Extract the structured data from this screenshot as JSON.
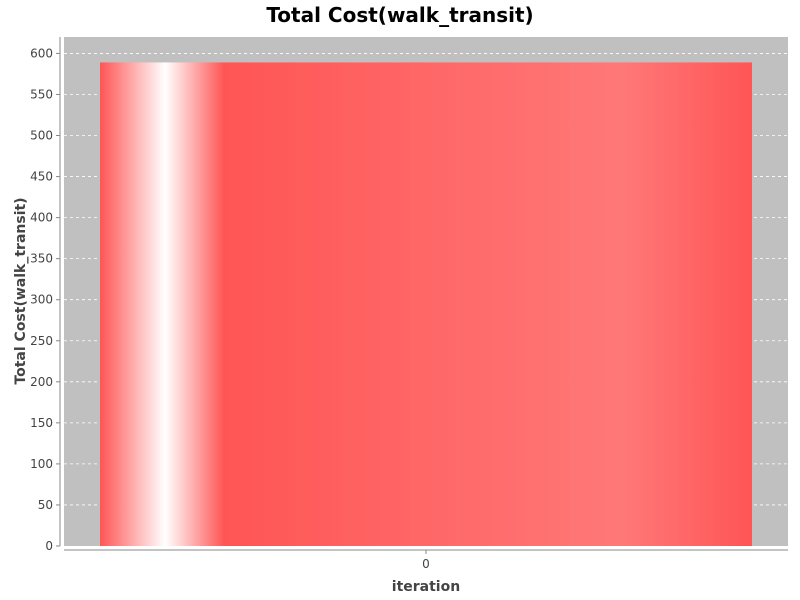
{
  "chart_data": {
    "type": "bar",
    "title": "Total Cost(walk_transit)",
    "xlabel": "iteration",
    "ylabel": "Total Cost(walk_transit)",
    "categories": [
      "0"
    ],
    "series": [
      {
        "values": [
          589
        ]
      }
    ],
    "ylim": [
      0,
      620
    ],
    "yticks": [
      0,
      50,
      100,
      150,
      200,
      250,
      300,
      350,
      400,
      450,
      500,
      550,
      600
    ],
    "grid": true,
    "legend": "none",
    "colors": {
      "plot_background": "#c0c0c0",
      "bar": "#ff5555",
      "bar_highlight": "#ffffff",
      "gridline": "#ffffff"
    }
  }
}
